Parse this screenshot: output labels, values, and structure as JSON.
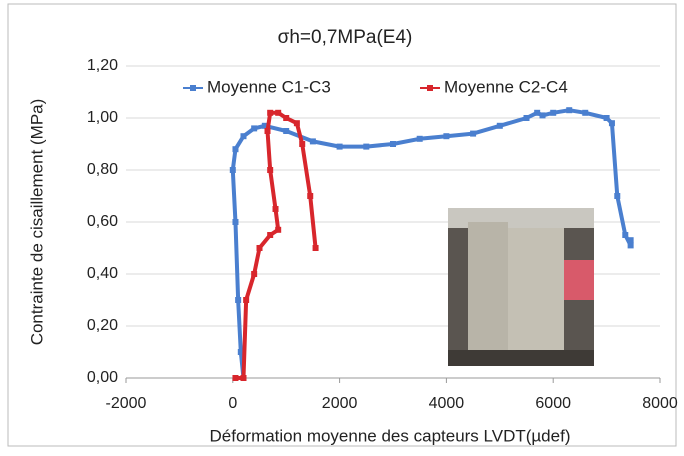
{
  "chart_data": {
    "type": "line",
    "title": "σh=0,7MPa(E4)",
    "x_label": "Déformation moyenne des capteurs LVDT(µdef)",
    "y_label": "Contrainte de cisaillement (MPa)",
    "xlim": [
      -2000,
      8000
    ],
    "xticks": [
      -2000,
      0,
      2000,
      4000,
      6000,
      8000
    ],
    "ylim": [
      0,
      1.2
    ],
    "yticks": [
      {
        "value": 0,
        "label": "0,00"
      },
      {
        "value": 0.2,
        "label": "0,20"
      },
      {
        "value": 0.4,
        "label": "0,40"
      },
      {
        "value": 0.6,
        "label": "0,60"
      },
      {
        "value": 0.8,
        "label": "0,80"
      },
      {
        "value": 1.0,
        "label": "1,00"
      },
      {
        "value": 1.2,
        "label": "1,20"
      }
    ],
    "grid": true,
    "legend": "top",
    "series": [
      {
        "name": "Moyenne C1-C3",
        "color": "#4a7fcf",
        "x": [
          200,
          150,
          100,
          50,
          0,
          50,
          200,
          400,
          600,
          1000,
          1500,
          2000,
          2500,
          3000,
          3500,
          4000,
          4500,
          5000,
          5500,
          5700,
          5800,
          6000,
          6300,
          6600,
          7000,
          7100,
          7200,
          7350,
          7450,
          7450
        ],
        "values": [
          0,
          0.1,
          0.3,
          0.6,
          0.8,
          0.88,
          0.93,
          0.96,
          0.97,
          0.95,
          0.91,
          0.89,
          0.89,
          0.9,
          0.92,
          0.93,
          0.94,
          0.97,
          1.0,
          1.02,
          1.01,
          1.02,
          1.03,
          1.02,
          1.0,
          0.98,
          0.7,
          0.55,
          0.51,
          0.53
        ]
      },
      {
        "name": "Moyenne C2-C4",
        "color": "#d8262c",
        "x": [
          50,
          200,
          250,
          400,
          500,
          700,
          850,
          800,
          700,
          650,
          700,
          850,
          1000,
          1200,
          1300,
          1450,
          1550
        ],
        "values": [
          0,
          0,
          0.3,
          0.4,
          0.5,
          0.55,
          0.57,
          0.65,
          0.8,
          0.95,
          1.02,
          1.02,
          1.0,
          0.98,
          0.9,
          0.7,
          0.5
        ]
      }
    ]
  }
}
